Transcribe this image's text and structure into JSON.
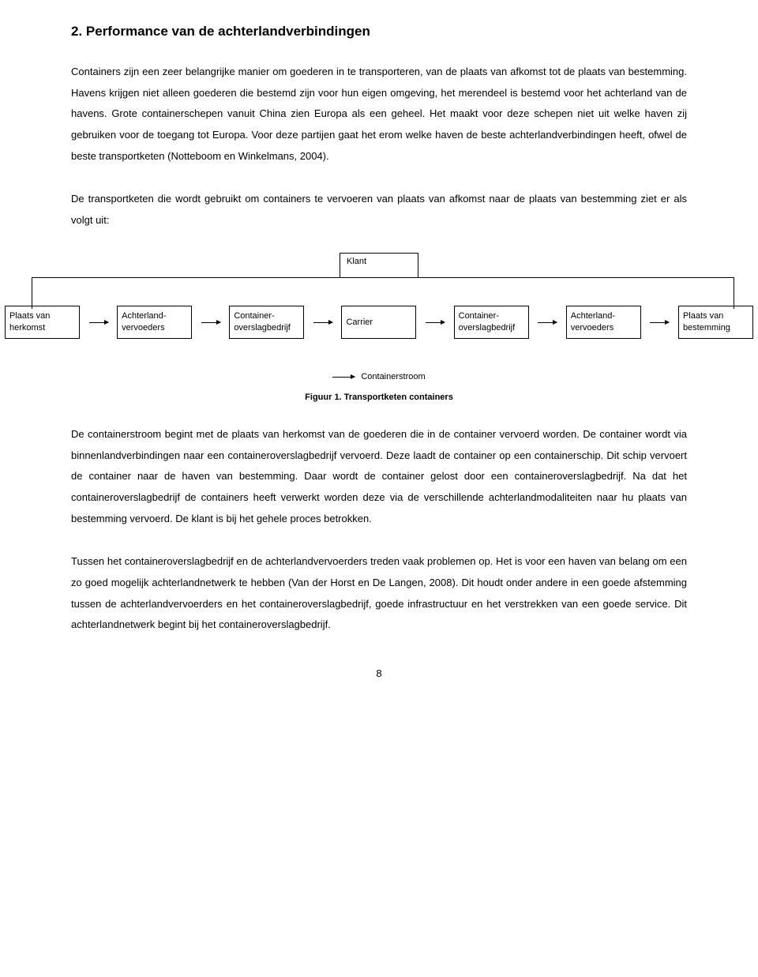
{
  "heading": "2. Performance van de achterlandverbindingen",
  "p1": "Containers zijn een zeer belangrijke manier om goederen in te transporteren, van de plaats van afkomst tot de plaats van bestemming. Havens krijgen niet alleen goederen die bestemd zijn voor hun eigen omgeving, het merendeel is bestemd voor het achterland van de havens. Grote containerschepen vanuit China zien Europa als een geheel. Het maakt voor deze schepen niet uit welke haven zij gebruiken voor de toegang tot Europa. Voor deze partijen gaat het erom welke haven de beste achterlandverbindingen heeft, ofwel de beste transportketen (Notteboom en Winkelmans, 2004).",
  "p2": "De transportketen die wordt gebruikt om containers te vervoeren van plaats van afkomst naar de plaats van bestemming ziet er als volgt uit:",
  "diagram": {
    "klant": "Klant",
    "nodes": [
      "Plaats van\nherkomst",
      "Achterland-\nvervoeders",
      "Container-\noverslagbedrijf",
      "Carrier",
      "Container-\noverslagbedrijf",
      "Achterland-\nvervoeders",
      "Plaats van\nbestemming"
    ],
    "legend": "Containerstroom"
  },
  "figcaption": "Figuur 1. Transportketen containers",
  "p3": "De containerstroom begint met de plaats van herkomst van de goederen die in de container vervoerd worden. De container wordt via binnenlandverbindingen naar een containeroverslagbedrijf vervoerd. Deze laadt de container op een containerschip. Dit schip vervoert de container naar de haven van bestemming. Daar wordt de container gelost door een containeroverslagbedrijf. Na dat het containeroverslagbedrijf de containers heeft verwerkt worden deze via de verschillende achterlandmodaliteiten naar hu plaats van bestemming vervoerd. De klant is bij het gehele proces betrokken.",
  "p4": "Tussen het containeroverslagbedrijf en de achterlandvervoerders treden vaak problemen op. Het is voor een haven van belang om een zo goed mogelijk achterlandnetwerk te hebben (Van der Horst en De Langen, 2008). Dit houdt onder andere in een goede afstemming tussen de achterlandvervoerders en het containeroverslagbedrijf, goede infrastructuur en het verstrekken van een goede service. Dit achterlandnetwerk begint bij het containeroverslagbedrijf.",
  "pagenum": "8"
}
